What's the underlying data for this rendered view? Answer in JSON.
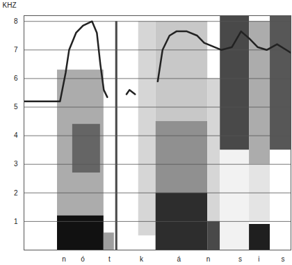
{
  "chart_data": {
    "type": "spectrogram",
    "grid": true,
    "ylabel": "KHZ",
    "ylim": [
      0,
      8.2
    ],
    "yticks": [
      1,
      2,
      3,
      4,
      5,
      6,
      7,
      8
    ],
    "xlim": [
      0,
      100
    ],
    "xticks": [
      {
        "value": 15,
        "label": "n"
      },
      {
        "value": 22,
        "label": "ó"
      },
      {
        "value": 32,
        "label": "t"
      },
      {
        "value": 44,
        "label": "k"
      },
      {
        "value": 58,
        "label": "á"
      },
      {
        "value": 69,
        "label": "n"
      },
      {
        "value": 81,
        "label": "s"
      },
      {
        "value": 88,
        "label": "i"
      },
      {
        "value": 97,
        "label": "s"
      }
    ],
    "contour": {
      "color": "#222222",
      "x": [
        0,
        13.5,
        15.6,
        16.9,
        19.5,
        22.1,
        25.5,
        27.3,
        28.6,
        29.9,
        31.2,
        35,
        38.4,
        39.5,
        41.6,
        45,
        50.1,
        51.9,
        54.5,
        57.1,
        61,
        64.9,
        67.5,
        74,
        77.9,
        81.3,
        84.4,
        87.5,
        90.9,
        94.8,
        97.4,
        100
      ],
      "values": [
        5.2,
        5.2,
        6.2,
        7.0,
        7.6,
        7.85,
        8.0,
        7.6,
        6.5,
        5.6,
        5.35,
        null,
        5.45,
        5.6,
        5.45,
        null,
        5.9,
        7.0,
        7.5,
        7.65,
        7.65,
        7.5,
        7.25,
        7.0,
        7.1,
        7.65,
        7.4,
        7.1,
        7.0,
        7.2,
        7.05,
        6.9
      ]
    },
    "energy": [
      {
        "x0": 12.5,
        "x1": 29.9,
        "y0": 1.2,
        "y1": 6.3,
        "intensity": 0.45
      },
      {
        "x0": 18.2,
        "x1": 28.6,
        "y0": 2.7,
        "y1": 4.4,
        "intensity": 0.7
      },
      {
        "x0": 12.5,
        "x1": 29.9,
        "y0": 0,
        "y1": 1.2,
        "intensity": 1.0
      },
      {
        "x0": 29.9,
        "x1": 33.8,
        "y0": 0,
        "y1": 0.6,
        "intensity": 0.5
      },
      {
        "x0": 34.3,
        "x1": 35.1,
        "y0": 0,
        "y1": 8,
        "intensity": 0.8
      },
      {
        "x0": 42.9,
        "x1": 49.4,
        "y0": 0.5,
        "y1": 8,
        "intensity": 0.3
      },
      {
        "x0": 49.4,
        "x1": 68.8,
        "y0": 4.5,
        "y1": 8,
        "intensity": 0.35
      },
      {
        "x0": 49.4,
        "x1": 68.8,
        "y0": 2,
        "y1": 4.5,
        "intensity": 0.55
      },
      {
        "x0": 49.4,
        "x1": 68.8,
        "y0": 0,
        "y1": 2,
        "intensity": 0.9
      },
      {
        "x0": 68.8,
        "x1": 73.5,
        "y0": 1,
        "y1": 6,
        "intensity": 0.3
      },
      {
        "x0": 68.8,
        "x1": 73.5,
        "y0": 0,
        "y1": 1,
        "intensity": 0.8
      },
      {
        "x0": 73.5,
        "x1": 84.4,
        "y0": 0,
        "y1": 3.5,
        "intensity": 0.2
      },
      {
        "x0": 73.5,
        "x1": 84.4,
        "y0": 3.5,
        "y1": 8.2,
        "intensity": 0.8
      },
      {
        "x0": 84.4,
        "x1": 92.2,
        "y0": 1,
        "y1": 3,
        "intensity": 0.25
      },
      {
        "x0": 84.4,
        "x1": 92.2,
        "y0": 3,
        "y1": 8,
        "intensity": 0.45
      },
      {
        "x0": 84.4,
        "x1": 92.2,
        "y0": 0,
        "y1": 0.9,
        "intensity": 0.95
      },
      {
        "x0": 92.2,
        "x1": 100,
        "y0": 3.5,
        "y1": 8.2,
        "intensity": 0.75
      }
    ]
  }
}
